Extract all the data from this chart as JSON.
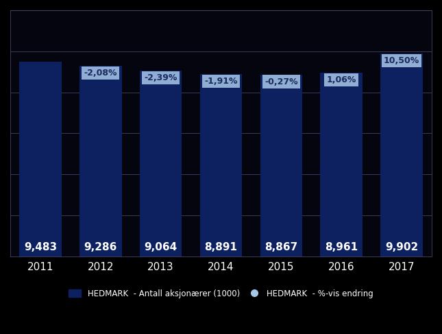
{
  "years": [
    "2011",
    "2012",
    "2013",
    "2014",
    "2015",
    "2016",
    "2017"
  ],
  "values": [
    9483,
    9286,
    9064,
    8891,
    8867,
    8961,
    9902
  ],
  "pct_changes": [
    null,
    -2.08,
    -2.39,
    -1.91,
    -0.27,
    1.06,
    10.5
  ],
  "bar_color": "#0d2060",
  "pct_label_bg": "#a8c8e8",
  "pct_label_text": "#1a2a5e",
  "background_color": "#000000",
  "plot_bg_color": "#050510",
  "text_color": "#ffffff",
  "grid_color": "#444466",
  "legend_label_bar": "HEDMARK  - Antall aksjonærer (1000)",
  "legend_label_dot": "HEDMARK  - %-vis endring",
  "ylim_min": 0,
  "ylim_max": 12000,
  "bar_width": 0.7,
  "value_fontsize": 11,
  "pct_fontsize": 9,
  "axis_fontsize": 11
}
